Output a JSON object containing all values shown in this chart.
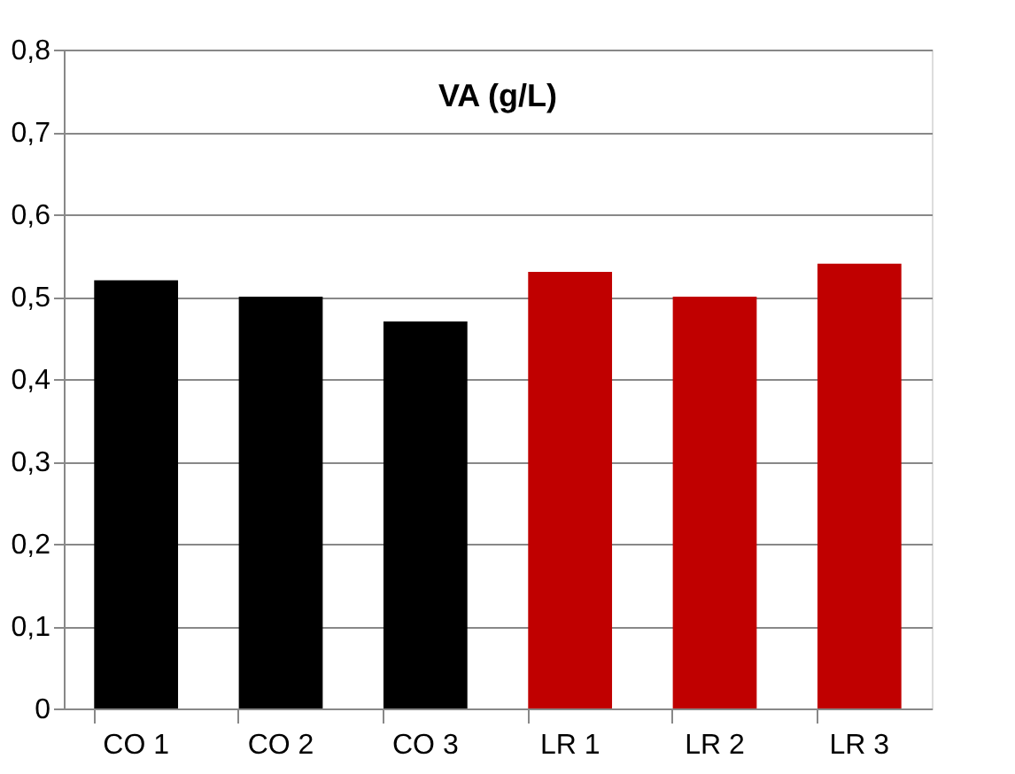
{
  "chart_data": {
    "type": "bar",
    "title": "VA (g/L)",
    "categories": [
      "CO 1",
      "CO 2",
      "CO 3",
      "LR 1",
      "LR 2",
      "LR 3"
    ],
    "values": [
      0.52,
      0.5,
      0.47,
      0.53,
      0.5,
      0.54
    ],
    "colors": [
      "#000000",
      "#000000",
      "#000000",
      "#c00000",
      "#c00000",
      "#c00000"
    ],
    "ylim": [
      0,
      0.8
    ],
    "yticks": [
      {
        "value": 0,
        "label": "0"
      },
      {
        "value": 0.1,
        "label": "0,1"
      },
      {
        "value": 0.2,
        "label": "0,2"
      },
      {
        "value": 0.3,
        "label": "0,3"
      },
      {
        "value": 0.4,
        "label": "0,4"
      },
      {
        "value": 0.5,
        "label": "0,5"
      },
      {
        "value": 0.6,
        "label": "0,6"
      },
      {
        "value": 0.7,
        "label": "0,7"
      },
      {
        "value": 0.8,
        "label": "0,8"
      }
    ],
    "grid": "y"
  }
}
